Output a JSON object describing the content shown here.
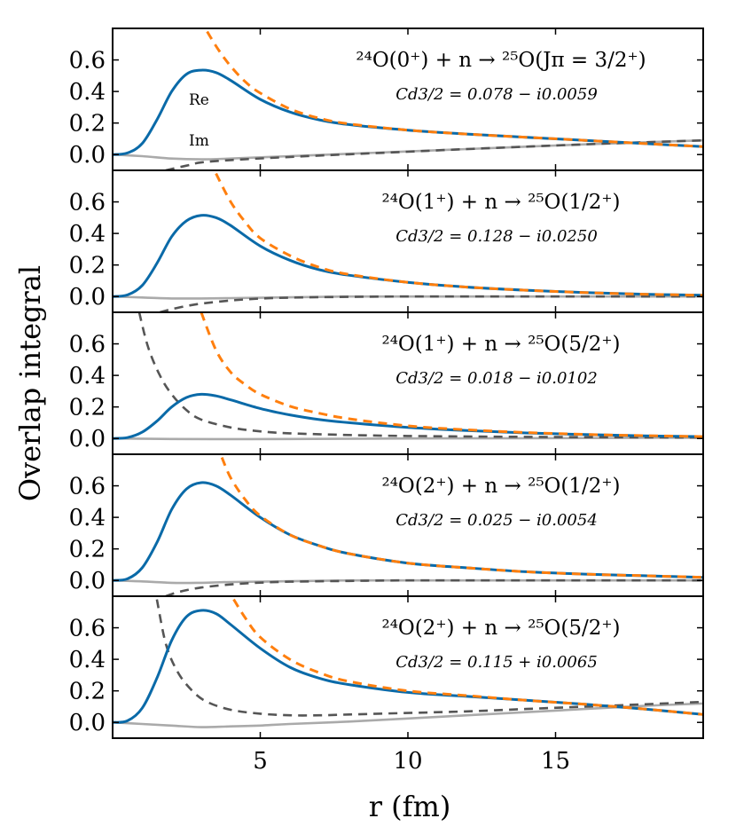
{
  "chart_data": {
    "type": "line",
    "ylabel": "Overlap integral",
    "xlabel": "r (fm)",
    "xlim": [
      0,
      20
    ],
    "ylim": [
      -0.1,
      0.8
    ],
    "x_ticks": [
      "5",
      "10",
      "15"
    ],
    "y_ticks": [
      "0.0",
      "0.2",
      "0.4",
      "0.6"
    ],
    "curve_labels": {
      "real": "Re",
      "imag": "Im"
    },
    "colors": {
      "real": "#0a6aa8",
      "asymptotic": "#ff7f0e",
      "imag": "#aaaaaa",
      "imag_asymptotic": "#555555"
    },
    "panels": [
      {
        "label": "²⁴O(0⁺) + n → ²⁵O(Jπ = 3/2⁺)",
        "coefficient": "Cd3/2 = 0.078 − i0.0059",
        "series": [
          {
            "name": "Re",
            "x": [
              0,
              0.5,
              1,
              1.5,
              2,
              2.5,
              3,
              3.5,
              4,
              5,
              6,
              7,
              8,
              10,
              12,
              14,
              16,
              18,
              20
            ],
            "y": [
              0,
              0.01,
              0.07,
              0.22,
              0.4,
              0.51,
              0.535,
              0.52,
              0.47,
              0.35,
              0.27,
              0.22,
              0.19,
              0.155,
              0.13,
              0.11,
              0.09,
              0.07,
              0.05
            ]
          },
          {
            "name": "Re asymptotic",
            "x": [
              3.2,
              3.6,
              4,
              4.5,
              5,
              6,
              7,
              8,
              10,
              12,
              14,
              16,
              18,
              20
            ],
            "y": [
              0.78,
              0.66,
              0.56,
              0.46,
              0.39,
              0.29,
              0.23,
              0.195,
              0.155,
              0.13,
              0.11,
              0.09,
              0.07,
              0.05
            ]
          },
          {
            "name": "Im",
            "x": [
              0,
              1,
              2,
              3,
              4,
              6,
              8,
              10,
              12,
              14,
              16,
              18,
              20
            ],
            "y": [
              0,
              -0.01,
              -0.025,
              -0.03,
              -0.025,
              -0.01,
              0.005,
              0.02,
              0.035,
              0.05,
              0.065,
              0.078,
              0.09
            ]
          },
          {
            "name": "Im asymptotic",
            "x": [
              1.8,
              2.5,
              3,
              4,
              6,
              8,
              10,
              12,
              14,
              16,
              18,
              20
            ],
            "y": [
              -0.1,
              -0.07,
              -0.05,
              -0.035,
              -0.015,
              0.002,
              0.018,
              0.035,
              0.05,
              0.065,
              0.078,
              0.09
            ]
          }
        ]
      },
      {
        "label": "²⁴O(1⁺) + n → ²⁵O(1/2⁺)",
        "coefficient": "Cd3/2 = 0.128 − i0.0250",
        "series": [
          {
            "name": "Re",
            "x": [
              0,
              0.5,
              1,
              1.5,
              2,
              2.5,
              3,
              3.5,
              4,
              5,
              6,
              7,
              8,
              10,
              12,
              14,
              16,
              18,
              20
            ],
            "y": [
              0,
              0.01,
              0.07,
              0.21,
              0.38,
              0.48,
              0.515,
              0.5,
              0.45,
              0.32,
              0.23,
              0.17,
              0.135,
              0.09,
              0.06,
              0.04,
              0.025,
              0.015,
              0.008
            ]
          },
          {
            "name": "Re asymptotic",
            "x": [
              3.5,
              4,
              4.5,
              5,
              6,
              7,
              8,
              10,
              12,
              14,
              16,
              18,
              20
            ],
            "y": [
              0.78,
              0.6,
              0.47,
              0.37,
              0.26,
              0.185,
              0.14,
              0.09,
              0.06,
              0.04,
              0.025,
              0.015,
              0.008
            ]
          },
          {
            "name": "Im",
            "x": [
              0,
              1,
              2,
              3,
              4,
              6,
              8,
              10,
              14,
              20
            ],
            "y": [
              0,
              -0.006,
              -0.012,
              -0.012,
              -0.01,
              -0.005,
              0,
              0,
              0,
              0
            ]
          },
          {
            "name": "Im asymptotic",
            "x": [
              1.6,
              2,
              2.5,
              3,
              4,
              5,
              6,
              8,
              10,
              14,
              20
            ],
            "y": [
              -0.1,
              -0.08,
              -0.06,
              -0.045,
              -0.025,
              -0.013,
              -0.007,
              -0.002,
              0,
              0,
              0
            ]
          }
        ]
      },
      {
        "label": "²⁴O(1⁺) + n → ²⁵O(5/2⁺)",
        "coefficient": "Cd3/2 = 0.018 − i0.0102",
        "series": [
          {
            "name": "Re",
            "x": [
              0,
              0.5,
              1,
              1.5,
              2,
              2.5,
              3,
              3.5,
              4,
              5,
              6,
              7,
              8,
              10,
              12,
              14,
              16,
              18,
              20
            ],
            "y": [
              0,
              0.006,
              0.04,
              0.11,
              0.2,
              0.26,
              0.28,
              0.27,
              0.245,
              0.19,
              0.15,
              0.12,
              0.1,
              0.07,
              0.05,
              0.035,
              0.025,
              0.017,
              0.012
            ]
          },
          {
            "name": "Re asymptotic",
            "x": [
              3,
              3.5,
              4,
              4.5,
              5,
              6,
              7,
              8,
              10,
              12,
              14,
              16,
              18,
              20
            ],
            "y": [
              0.8,
              0.56,
              0.42,
              0.34,
              0.28,
              0.205,
              0.16,
              0.125,
              0.08,
              0.055,
              0.038,
              0.026,
              0.018,
              0.012
            ]
          },
          {
            "name": "Im",
            "x": [
              0,
              2,
              4,
              6,
              10,
              14,
              20
            ],
            "y": [
              0,
              -0.003,
              -0.004,
              -0.003,
              0,
              0.002,
              0.005
            ]
          },
          {
            "name": "Im asymptotic",
            "x": [
              0.9,
              1.2,
              1.6,
              2,
              2.5,
              3,
              4,
              5,
              6,
              8,
              10,
              14,
              20
            ],
            "y": [
              0.8,
              0.58,
              0.4,
              0.28,
              0.18,
              0.12,
              0.07,
              0.045,
              0.033,
              0.022,
              0.016,
              0.01,
              0.006
            ]
          }
        ]
      },
      {
        "label": "²⁴O(2⁺) + n → ²⁵O(1/2⁺)",
        "coefficient": "Cd3/2 = 0.025 − i0.0054",
        "series": [
          {
            "name": "Re",
            "x": [
              0,
              0.5,
              1,
              1.5,
              2,
              2.5,
              3,
              3.5,
              4,
              5,
              6,
              7,
              8,
              10,
              12,
              14,
              16,
              18,
              20
            ],
            "y": [
              0,
              0.01,
              0.08,
              0.24,
              0.45,
              0.58,
              0.62,
              0.6,
              0.54,
              0.4,
              0.29,
              0.22,
              0.17,
              0.11,
              0.08,
              0.055,
              0.04,
              0.03,
              0.02
            ]
          },
          {
            "name": "Re asymptotic",
            "x": [
              3.7,
              4,
              4.5,
              5,
              6,
              7,
              8,
              10,
              12,
              14,
              16,
              18,
              20
            ],
            "y": [
              0.78,
              0.65,
              0.51,
              0.41,
              0.29,
              0.22,
              0.17,
              0.11,
              0.08,
              0.055,
              0.04,
              0.03,
              0.02
            ]
          },
          {
            "name": "Im",
            "x": [
              0,
              1,
              2,
              3,
              4,
              6,
              8,
              10,
              14,
              20
            ],
            "y": [
              0,
              -0.006,
              -0.015,
              -0.015,
              -0.01,
              -0.005,
              0,
              0,
              0,
              0
            ]
          },
          {
            "name": "Im asymptotic",
            "x": [
              1.8,
              2.3,
              3,
              4,
              5,
              6,
              8,
              10,
              14,
              20
            ],
            "y": [
              -0.1,
              -0.07,
              -0.045,
              -0.025,
              -0.014,
              -0.008,
              -0.003,
              0,
              0,
              0
            ]
          }
        ]
      },
      {
        "label": "²⁴O(2⁺) + n → ²⁵O(5/2⁺)",
        "coefficient": "Cd3/2 = 0.115 + i0.0065",
        "series": [
          {
            "name": "Re",
            "x": [
              0,
              0.5,
              1,
              1.5,
              2,
              2.5,
              3,
              3.5,
              4,
              5,
              6,
              7,
              8,
              10,
              12,
              14,
              16,
              18,
              20
            ],
            "y": [
              0,
              0.01,
              0.09,
              0.28,
              0.52,
              0.67,
              0.71,
              0.69,
              0.62,
              0.47,
              0.35,
              0.28,
              0.24,
              0.19,
              0.165,
              0.14,
              0.115,
              0.085,
              0.05
            ]
          },
          {
            "name": "Re asymptotic",
            "x": [
              4.1,
              4.5,
              5,
              6,
              7,
              8,
              10,
              12,
              14,
              16,
              18,
              20
            ],
            "y": [
              0.78,
              0.66,
              0.54,
              0.4,
              0.315,
              0.26,
              0.2,
              0.17,
              0.14,
              0.115,
              0.085,
              0.05
            ]
          },
          {
            "name": "Im",
            "x": [
              0,
              1,
              2,
              3,
              4,
              5,
              6,
              8,
              10,
              12,
              14,
              16,
              18,
              20
            ],
            "y": [
              0,
              -0.01,
              -0.02,
              -0.03,
              -0.025,
              -0.02,
              -0.01,
              0.005,
              0.025,
              0.045,
              0.065,
              0.085,
              0.105,
              0.12
            ]
          },
          {
            "name": "Im asymptotic",
            "x": [
              1.5,
              1.8,
              2.2,
              2.7,
              3.2,
              4,
              5,
              6,
              7,
              8,
              10,
              12,
              14,
              16,
              18,
              20
            ],
            "y": [
              0.78,
              0.5,
              0.32,
              0.2,
              0.13,
              0.08,
              0.055,
              0.045,
              0.045,
              0.05,
              0.06,
              0.07,
              0.085,
              0.1,
              0.115,
              0.13
            ]
          }
        ]
      }
    ]
  }
}
